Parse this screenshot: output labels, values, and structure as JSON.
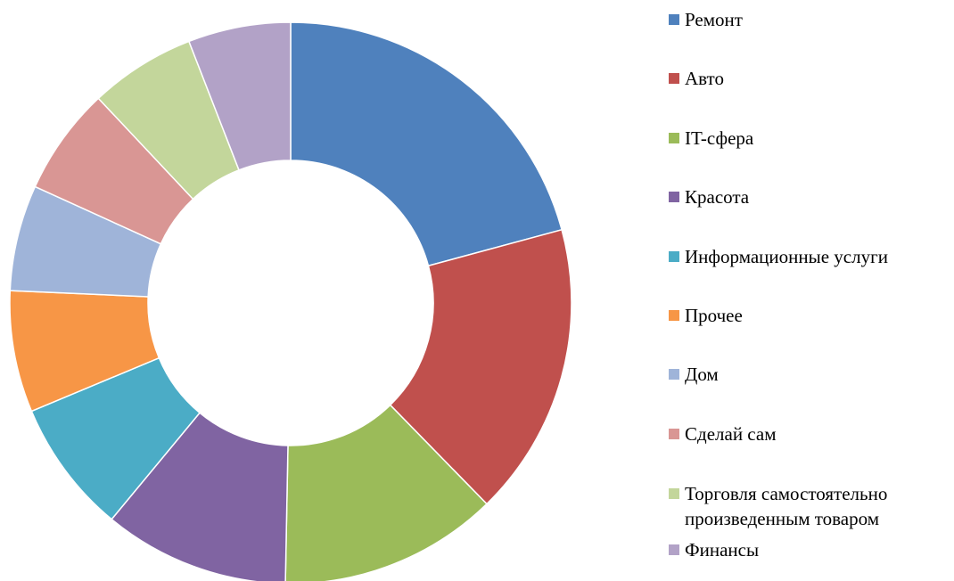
{
  "chart_data": {
    "type": "donut",
    "categories": [
      "Ремонт",
      "Авто",
      "IT-сфера",
      "Красота",
      "Информационные услуги",
      "Прочее",
      "Дом",
      "Сделай сам",
      "Торговля самостоятельно произведенным товаром",
      "Финансы"
    ],
    "values": [
      20.8,
      16.9,
      12.6,
      10.7,
      7.7,
      7,
      6.1,
      6.2,
      6.1,
      5.9
    ],
    "colors": [
      "#4f81bd",
      "#c0504d",
      "#9bbb59",
      "#8064a2",
      "#4bacc6",
      "#f79646",
      "#9fb4d9",
      "#d99694",
      "#c3d69b",
      "#b2a2c7"
    ],
    "legend": "right"
  }
}
